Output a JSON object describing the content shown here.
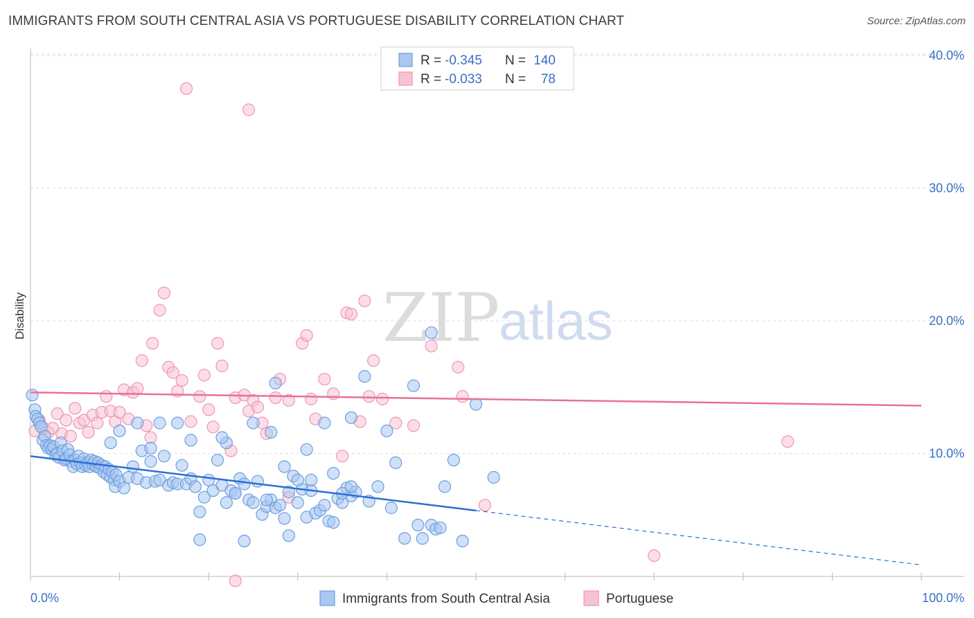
{
  "header": {
    "title": "IMMIGRANTS FROM SOUTH CENTRAL ASIA VS PORTUGUESE DISABILITY CORRELATION CHART",
    "source": "Source: ZipAtlas.com"
  },
  "watermark": {
    "zip": "ZIP",
    "atlas": "atlas"
  },
  "stats": [
    {
      "r_label": "R =",
      "r_value": "-0.345",
      "n_label": "N =",
      "n_value": "140",
      "color": "#7aa7e8"
    },
    {
      "r_label": "R =",
      "r_value": "-0.033",
      "n_label": "N =",
      "n_value": "78",
      "color": "#f29ab8"
    }
  ],
  "legend": [
    {
      "label": "Immigrants from South Central Asia",
      "color": "#7aa7e8"
    },
    {
      "label": "Portuguese",
      "color": "#f29ab8"
    }
  ],
  "chart_data": {
    "type": "scatter",
    "ylabel": "Disability",
    "xlim": [
      0,
      100
    ],
    "ylim": [
      0,
      42
    ],
    "x_tick_labels": [
      "0.0%",
      "100.0%"
    ],
    "y_ticks": [
      10,
      20,
      30,
      40
    ],
    "y_tick_labels": [
      "10.0%",
      "20.0%",
      "30.0%",
      "40.0%"
    ],
    "grid": true,
    "colors": {
      "blue_fill": "#a9c7f0",
      "blue_stroke": "#6a9ee0",
      "blue_line": "#2a6fd6",
      "pink_fill": "#f7c3d4",
      "pink_stroke": "#ee95b3",
      "pink_line": "#e8709a",
      "tick_label": "#3a6fc4"
    },
    "series": [
      {
        "name": "Immigrants from South Central Asia",
        "trend": {
          "x0": 0,
          "y0": 9.8,
          "x1": 50,
          "y1": 5.7,
          "dash_x1": 100,
          "dash_y1": 1.6
        },
        "points": [
          [
            0.2,
            14.4
          ],
          [
            0.5,
            13.3
          ],
          [
            0.6,
            12.8
          ],
          [
            0.8,
            12.6
          ],
          [
            1.0,
            12.3
          ],
          [
            1.2,
            12.0
          ],
          [
            1.4,
            11.0
          ],
          [
            1.6,
            11.3
          ],
          [
            1.8,
            10.6
          ],
          [
            2.0,
            10.4
          ],
          [
            2.2,
            10.6
          ],
          [
            2.4,
            10.3
          ],
          [
            2.6,
            10.5
          ],
          [
            2.8,
            9.9
          ],
          [
            3.0,
            10.0
          ],
          [
            3.2,
            9.7
          ],
          [
            3.4,
            10.8
          ],
          [
            3.6,
            10.2
          ],
          [
            3.8,
            9.5
          ],
          [
            4.0,
            9.6
          ],
          [
            4.2,
            10.3
          ],
          [
            4.4,
            9.9
          ],
          [
            4.6,
            9.4
          ],
          [
            4.8,
            9.0
          ],
          [
            5.0,
            9.5
          ],
          [
            5.2,
            9.2
          ],
          [
            5.4,
            9.8
          ],
          [
            5.6,
            9.3
          ],
          [
            5.8,
            9.0
          ],
          [
            6.0,
            9.6
          ],
          [
            6.2,
            9.1
          ],
          [
            6.4,
            9.3
          ],
          [
            6.6,
            9.0
          ],
          [
            6.8,
            9.5
          ],
          [
            7.0,
            9.2
          ],
          [
            7.2,
            9.4
          ],
          [
            7.4,
            9.0
          ],
          [
            7.6,
            9.3
          ],
          [
            7.8,
            8.9
          ],
          [
            8.0,
            9.1
          ],
          [
            8.2,
            8.6
          ],
          [
            8.4,
            9.0
          ],
          [
            8.6,
            8.4
          ],
          [
            8.8,
            8.8
          ],
          [
            9.0,
            8.2
          ],
          [
            9.2,
            8.6
          ],
          [
            9.4,
            8.0
          ],
          [
            9.6,
            8.4
          ],
          [
            9.0,
            10.8
          ],
          [
            9.5,
            7.5
          ],
          [
            10.0,
            7.9
          ],
          [
            10.5,
            7.4
          ],
          [
            11.0,
            8.2
          ],
          [
            11.5,
            9.0
          ],
          [
            12.0,
            8.1
          ],
          [
            12.5,
            10.2
          ],
          [
            13.0,
            7.8
          ],
          [
            13.5,
            9.4
          ],
          [
            14.0,
            7.9
          ],
          [
            14.5,
            8.0
          ],
          [
            15.0,
            9.8
          ],
          [
            15.5,
            7.6
          ],
          [
            16.0,
            7.8
          ],
          [
            16.5,
            7.7
          ],
          [
            17.0,
            9.1
          ],
          [
            17.5,
            7.7
          ],
          [
            18.0,
            8.1
          ],
          [
            18.5,
            7.5
          ],
          [
            19.0,
            5.6
          ],
          [
            19.5,
            6.7
          ],
          [
            20.0,
            8.0
          ],
          [
            20.5,
            7.2
          ],
          [
            21.0,
            9.5
          ],
          [
            21.5,
            7.6
          ],
          [
            22.0,
            6.3
          ],
          [
            22.5,
            7.2
          ],
          [
            23.0,
            7.0
          ],
          [
            23.5,
            8.1
          ],
          [
            24.0,
            7.7
          ],
          [
            24.5,
            6.5
          ],
          [
            25.0,
            6.3
          ],
          [
            25.5,
            7.9
          ],
          [
            26.0,
            5.4
          ],
          [
            26.5,
            6.0
          ],
          [
            27.0,
            6.5
          ],
          [
            27.5,
            5.9
          ],
          [
            28.0,
            6.1
          ],
          [
            28.5,
            5.1
          ],
          [
            29.0,
            7.1
          ],
          [
            29.5,
            8.3
          ],
          [
            30.0,
            6.3
          ],
          [
            30.5,
            7.3
          ],
          [
            31.0,
            5.2
          ],
          [
            31.5,
            7.2
          ],
          [
            32.0,
            5.5
          ],
          [
            32.5,
            5.7
          ],
          [
            33.0,
            6.1
          ],
          [
            33.5,
            4.9
          ],
          [
            34.0,
            4.8
          ],
          [
            34.5,
            6.6
          ],
          [
            35.0,
            6.3
          ],
          [
            35.5,
            7.4
          ],
          [
            36.0,
            6.8
          ],
          [
            36.5,
            7.1
          ],
          [
            12.0,
            12.3
          ],
          [
            14.5,
            12.3
          ],
          [
            10.0,
            11.7
          ],
          [
            18.0,
            11.0
          ],
          [
            22.0,
            10.8
          ],
          [
            25.0,
            12.3
          ],
          [
            27.0,
            11.6
          ],
          [
            31.0,
            10.3
          ],
          [
            33.0,
            12.3
          ],
          [
            36.0,
            12.7
          ],
          [
            37.5,
            15.8
          ],
          [
            40.0,
            11.7
          ],
          [
            41.0,
            9.3
          ],
          [
            43.0,
            15.1
          ],
          [
            45.0,
            19.1
          ],
          [
            46.5,
            7.5
          ],
          [
            38.0,
            6.4
          ],
          [
            39.0,
            7.5
          ],
          [
            40.5,
            5.9
          ],
          [
            42.0,
            3.6
          ],
          [
            43.5,
            4.6
          ],
          [
            44.0,
            3.6
          ],
          [
            45.0,
            4.6
          ],
          [
            45.5,
            4.3
          ],
          [
            46.0,
            4.4
          ],
          [
            47.5,
            9.5
          ],
          [
            48.5,
            3.4
          ],
          [
            50.0,
            13.7
          ],
          [
            52.0,
            8.2
          ],
          [
            19.0,
            3.5
          ],
          [
            24.0,
            3.4
          ],
          [
            29.0,
            3.8
          ],
          [
            23.0,
            7.0
          ],
          [
            26.5,
            6.5
          ],
          [
            28.5,
            9.0
          ],
          [
            30.0,
            8.0
          ],
          [
            31.5,
            8.0
          ],
          [
            34.0,
            8.5
          ],
          [
            35.0,
            7.0
          ],
          [
            36.0,
            7.5
          ],
          [
            27.5,
            15.3
          ],
          [
            16.5,
            12.3
          ],
          [
            21.5,
            11.2
          ],
          [
            13.5,
            10.4
          ]
        ]
      },
      {
        "name": "Portuguese",
        "trend": {
          "x0": 0,
          "y0": 14.6,
          "x1": 100,
          "y1": 13.6
        },
        "points": [
          [
            0.5,
            11.7
          ],
          [
            1.0,
            12.5
          ],
          [
            1.5,
            11.9
          ],
          [
            2.0,
            11.6
          ],
          [
            2.5,
            11.9
          ],
          [
            3.0,
            13.0
          ],
          [
            3.5,
            11.5
          ],
          [
            4.0,
            12.5
          ],
          [
            4.5,
            11.3
          ],
          [
            5.0,
            13.4
          ],
          [
            5.5,
            12.3
          ],
          [
            6.0,
            12.5
          ],
          [
            6.5,
            11.6
          ],
          [
            7.0,
            12.9
          ],
          [
            7.5,
            12.3
          ],
          [
            8.0,
            13.1
          ],
          [
            8.5,
            14.3
          ],
          [
            9.0,
            13.2
          ],
          [
            9.5,
            12.4
          ],
          [
            10.0,
            13.1
          ],
          [
            10.5,
            14.8
          ],
          [
            11.0,
            12.6
          ],
          [
            11.5,
            14.6
          ],
          [
            12.0,
            14.9
          ],
          [
            12.5,
            17.0
          ],
          [
            13.0,
            12.1
          ],
          [
            13.5,
            11.2
          ],
          [
            13.7,
            18.3
          ],
          [
            14.5,
            20.8
          ],
          [
            15.0,
            22.1
          ],
          [
            15.5,
            16.5
          ],
          [
            16.0,
            16.1
          ],
          [
            16.5,
            14.7
          ],
          [
            17.0,
            15.5
          ],
          [
            18.0,
            12.4
          ],
          [
            19.0,
            14.3
          ],
          [
            19.5,
            15.9
          ],
          [
            20.0,
            13.3
          ],
          [
            20.5,
            12.0
          ],
          [
            21.0,
            18.3
          ],
          [
            21.5,
            16.6
          ],
          [
            22.5,
            10.2
          ],
          [
            23.0,
            14.2
          ],
          [
            24.0,
            14.4
          ],
          [
            24.5,
            13.2
          ],
          [
            25.0,
            14.0
          ],
          [
            25.5,
            13.5
          ],
          [
            26.0,
            12.3
          ],
          [
            26.5,
            11.5
          ],
          [
            27.5,
            14.2
          ],
          [
            28.0,
            15.6
          ],
          [
            29.0,
            14.0
          ],
          [
            30.5,
            18.3
          ],
          [
            31.0,
            18.9
          ],
          [
            31.5,
            14.1
          ],
          [
            32.0,
            12.6
          ],
          [
            33.0,
            15.6
          ],
          [
            34.0,
            14.5
          ],
          [
            35.0,
            9.8
          ],
          [
            35.5,
            20.6
          ],
          [
            36.0,
            20.5
          ],
          [
            37.0,
            12.4
          ],
          [
            37.5,
            21.5
          ],
          [
            38.0,
            14.3
          ],
          [
            38.5,
            17.0
          ],
          [
            39.5,
            14.1
          ],
          [
            41.0,
            12.3
          ],
          [
            43.0,
            12.1
          ],
          [
            45.0,
            18.1
          ],
          [
            48.0,
            16.5
          ],
          [
            48.5,
            14.3
          ],
          [
            51.0,
            6.1
          ],
          [
            17.5,
            37.5
          ],
          [
            24.5,
            35.9
          ],
          [
            29.0,
            6.7
          ],
          [
            85.0,
            10.9
          ],
          [
            70.0,
            2.3
          ],
          [
            23.0,
            0.4
          ]
        ]
      }
    ]
  }
}
